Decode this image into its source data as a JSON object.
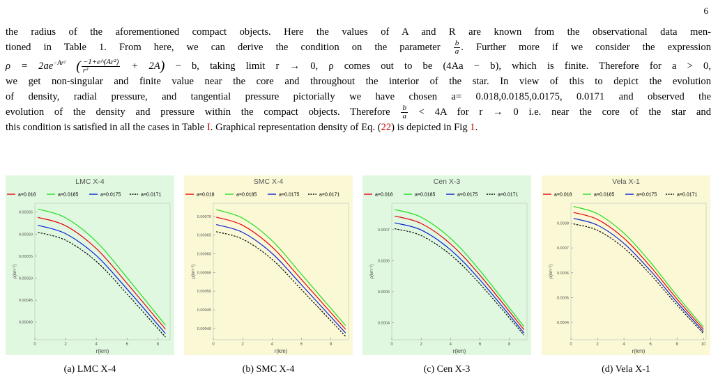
{
  "page_number": "6",
  "paragraph": {
    "line1": "the radius of the aforementioned compact objects. Here the values of A and R are known from the observational data men-",
    "line2_a": "tioned in Table 1. From here, we can derive the condition on the parameter",
    "line2_frac_num": "b",
    "line2_frac_den": "a",
    "line2_b": ". Further more if we consider the expression",
    "line3_a": "ρ = 2ae",
    "line3_sup": "−Ar²",
    "line3_frac_num": "−1+e^(Ar²)",
    "line3_frac_den": "r²",
    "line3_b": "+ 2A",
    "line3_c": "− b, taking limit r → 0, ρ comes out to be (4Aa − b), which is finite. Therefore for a > 0,",
    "line4": "we get non-singular and finite value near the core and throughout the interior of the star. In view of this to depict the evolution",
    "line5": "of density, radial pressure, and tangential pressure pictorially we have chosen a= 0.018,0.0185,0.0175, 0.0171 and observed the",
    "line6_a": "evolution of the density and pressure within the compact objects. Therefore",
    "line6_frac_num": "b",
    "line6_frac_den": "a",
    "line6_b": "< 4A for r → 0 i.e. near the core of the star and",
    "line7_a": "this condition is satisfied in all the cases in Table",
    "line7_ref1": "I",
    "line7_b": ". Graphical representation density of Eq. (",
    "line7_ref2": "22",
    "line7_c": ") is depicted in Fig",
    "line7_ref3": "1",
    "line7_d": "."
  },
  "legend_entries": [
    "a=0.018",
    "a=0.0185",
    "a=0.0175",
    "a=0.0171"
  ],
  "colors": {
    "red": "#e8000b",
    "green": "#22dd22",
    "blue": "#0b1fd6",
    "black": "#000000",
    "bg_green": "#dff8df",
    "bg_yellow": "#fbf8d5"
  },
  "chart_data": [
    {
      "type": "line",
      "title": "LMC X-4",
      "xlabel": "r(km)",
      "ylabel": "ρ(km⁻²)",
      "xlim": [
        0,
        8.8
      ],
      "ylim": [
        0.00036,
        0.00067
      ],
      "xticks": [
        0,
        2,
        4,
        6,
        8
      ],
      "yticks": [
        0.0004,
        0.00045,
        0.0005,
        0.00055,
        0.0006,
        0.00065
      ],
      "ytick_labels": [
        "0.00040",
        "0.00045",
        "0.00050",
        "0.00055",
        "0.00060",
        "0.00065"
      ],
      "background": "bg_green",
      "caption": "(a) LMC X-4",
      "series": [
        {
          "name": "a=0.018",
          "color": "red",
          "x": [
            0.2,
            2,
            4,
            6,
            8.5
          ],
          "y": [
            0.000638,
            0.000619,
            0.000567,
            0.000488,
            0.000384
          ]
        },
        {
          "name": "a=0.0185",
          "color": "green",
          "x": [
            0.2,
            2,
            4,
            6,
            8.5
          ],
          "y": [
            0.000657,
            0.000637,
            0.000583,
            0.000501,
            0.000393
          ]
        },
        {
          "name": "a=0.0175",
          "color": "blue",
          "x": [
            0.2,
            2,
            4,
            6,
            8.5
          ],
          "y": [
            0.00062,
            0.000601,
            0.000551,
            0.000475,
            0.000374
          ]
        },
        {
          "name": "a=0.0171",
          "color": "black",
          "x": [
            0.2,
            2,
            4,
            6,
            8.5
          ],
          "y": [
            0.000604,
            0.000586,
            0.000538,
            0.000464,
            0.000366
          ]
        }
      ]
    },
    {
      "type": "line",
      "title": "SMC X-4",
      "xlabel": "r(km)",
      "ylabel": "ρ(km⁻²)",
      "xlim": [
        0,
        9.2
      ],
      "ylim": [
        0.00037,
        0.000735
      ],
      "xticks": [
        0,
        2,
        4,
        6,
        8
      ],
      "yticks": [
        0.0004,
        0.00045,
        0.0005,
        0.00055,
        0.0006,
        0.00065,
        0.0007
      ],
      "ytick_labels": [
        "0.00040",
        "0.00045",
        "0.00050",
        "0.00055",
        "0.00060",
        "0.00065",
        "0.00070"
      ],
      "background": "bg_yellow",
      "caption": "(b) SMC X-4",
      "series": [
        {
          "name": "a=0.018",
          "color": "red",
          "x": [
            0.2,
            2,
            4,
            6,
            9
          ],
          "y": [
            0.000698,
            0.000676,
            0.000618,
            0.000531,
            0.000398
          ]
        },
        {
          "name": "a=0.0185",
          "color": "green",
          "x": [
            0.2,
            2,
            4,
            6,
            9
          ],
          "y": [
            0.000718,
            0.000695,
            0.000635,
            0.000545,
            0.000408
          ]
        },
        {
          "name": "a=0.0175",
          "color": "blue",
          "x": [
            0.2,
            2,
            4,
            6,
            9
          ],
          "y": [
            0.000678,
            0.000657,
            0.000601,
            0.000517,
            0.000388
          ]
        },
        {
          "name": "a=0.0171",
          "color": "black",
          "x": [
            0.2,
            2,
            4,
            6,
            9
          ],
          "y": [
            0.000659,
            0.000639,
            0.000585,
            0.000504,
            0.000379
          ]
        }
      ]
    },
    {
      "type": "line",
      "title": "Cen X-3",
      "xlabel": "r(km)",
      "ylabel": "ρ(km⁻²)",
      "xlim": [
        0,
        9.2
      ],
      "ylim": [
        0.000345,
        0.000785
      ],
      "xticks": [
        0,
        2,
        4,
        6,
        8
      ],
      "yticks": [
        0.0004,
        0.0005,
        0.0006,
        0.0007
      ],
      "ytick_labels": [
        "0.0004",
        "0.0005",
        "0.0006",
        "0.0007"
      ],
      "background": "bg_green",
      "caption": "(c) Cen X-3",
      "series": [
        {
          "name": "a=0.018",
          "color": "red",
          "x": [
            0.2,
            2,
            4,
            6,
            9
          ],
          "y": [
            0.000744,
            0.00072,
            0.000654,
            0.000553,
            0.000377
          ]
        },
        {
          "name": "a=0.0185",
          "color": "green",
          "x": [
            0.2,
            2,
            4,
            6,
            9
          ],
          "y": [
            0.000765,
            0.00074,
            0.000672,
            0.000568,
            0.000387
          ]
        },
        {
          "name": "a=0.0175",
          "color": "blue",
          "x": [
            0.2,
            2,
            4,
            6,
            9
          ],
          "y": [
            0.000722,
            0.000699,
            0.000635,
            0.000538,
            0.000367
          ]
        },
        {
          "name": "a=0.0171",
          "color": "black",
          "x": [
            0.2,
            2,
            4,
            6,
            9
          ],
          "y": [
            0.000703,
            0.000681,
            0.000619,
            0.000525,
            0.00036
          ]
        }
      ]
    },
    {
      "type": "line",
      "title": "Vela X-1",
      "xlabel": "r(km)",
      "ylabel": "ρ(km⁻²)",
      "xlim": [
        0,
        10.2
      ],
      "ylim": [
        0.00033,
        0.00088
      ],
      "xticks": [
        0,
        2,
        4,
        6,
        8,
        10
      ],
      "yticks": [
        0.0004,
        0.0005,
        0.0006,
        0.0007,
        0.0008
      ],
      "ytick_labels": [
        "0.0004",
        "0.0005",
        "0.0006",
        "0.0007",
        "0.0008"
      ],
      "background": "bg_yellow",
      "caption": "(d) Vela X-1",
      "series": [
        {
          "name": "a=0.018",
          "color": "red",
          "x": [
            0.2,
            2,
            4,
            6,
            8,
            10
          ],
          "y": [
            0.000843,
            0.000815,
            0.000739,
            0.000625,
            0.000494,
            0.000372
          ]
        },
        {
          "name": "a=0.0185",
          "color": "green",
          "x": [
            0.2,
            2,
            4,
            6,
            8,
            10
          ],
          "y": [
            0.000867,
            0.000838,
            0.000759,
            0.000642,
            0.000507,
            0.000381
          ]
        },
        {
          "name": "a=0.0175",
          "color": "blue",
          "x": [
            0.2,
            2,
            4,
            6,
            8,
            10
          ],
          "y": [
            0.000819,
            0.000792,
            0.000718,
            0.000608,
            0.000481,
            0.000363
          ]
        },
        {
          "name": "a=0.0171",
          "color": "black",
          "x": [
            0.2,
            2,
            4,
            6,
            8,
            10
          ],
          "y": [
            0.000797,
            0.000771,
            0.0007,
            0.000593,
            0.00047,
            0.000355
          ]
        }
      ]
    }
  ]
}
